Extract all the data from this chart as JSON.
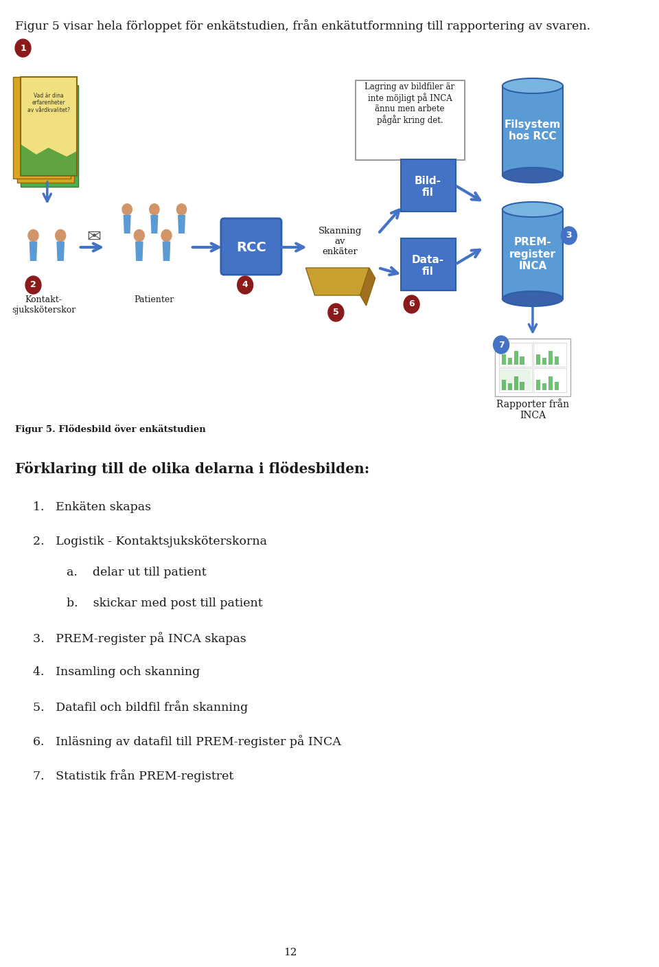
{
  "title_line": "Figur 5 visar hela förloppet för enkätstudien, från enkätutformning till rapportering av svaren.",
  "fig_caption": "Figur 5. Flödesbild över enkätstudien",
  "section_heading": "Förklaring till de olika delarna i flödesbilden:",
  "list_items_main": [
    "1.   Enkäten skapas",
    "2.   Logistik - Kontaktsjuksköterskorna",
    "3.   PREM-register på INCA skapas",
    "4.   Insamling och skanning",
    "5.   Datafil och bildfil från skanning",
    "6.   Inläsning av datafil till PREM-register på INCA",
    "7.   Statistik från PREM-registret"
  ],
  "list_item_2": "2.   Logistik - Kontaktsjuksköterskorna",
  "subitem_a": "a.    delar ut till patient",
  "subitem_b": "b.    skickar med post till patient",
  "page_number": "12",
  "bg_color": "#ffffff",
  "text_color": "#1a1a1a",
  "note_text": "Lagring av bildfiler är\ninte möjligt på INCA\nännu men arbete\npågår kring det.",
  "kontakt_label": "Kontakt-\nsjuksköterskor",
  "patienter_label": "Patienter",
  "rcc_label": "RCC",
  "skanning_label": "Skanning\nav\nenkäter",
  "bildfil_label": "Bild-\nfil",
  "datafil_label": "Data-\nfil",
  "filsystem_label": "Filsystem\nhos RCC",
  "prem_label": "PREM-\nregister\nINCA",
  "rapporter_label": "Rapporter från\nINCA",
  "red_bubble": "#8B1A1A",
  "blue_bubble": "#4472C4",
  "person_color": "#5B9BD5",
  "person_head": "#D2956A",
  "arrow_blue": "#4472C4",
  "rcc_fill": "#4472C4",
  "bildfil_fill": "#4472C4",
  "datafil_fill": "#4472C4",
  "prem_fill": "#4472C4",
  "filsystem_fill": "#4472C4",
  "scanner_fill": "#C8A030"
}
